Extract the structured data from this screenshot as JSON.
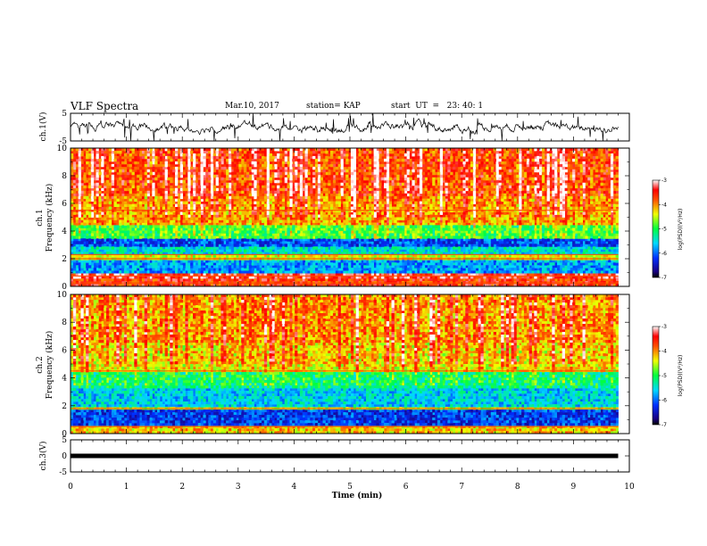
{
  "header": {
    "title": "VLF Spectra",
    "date": "Mar.10, 2017",
    "station": "station= KAP",
    "start": "start  UT  =   23: 40: 1"
  },
  "chart_data": [
    {
      "type": "line",
      "panel": "ch1-waveform",
      "ylabel": "ch.1(V)",
      "ylim": [
        -5,
        5
      ],
      "yticks": [
        "5",
        "-5"
      ],
      "xlim": [
        0,
        10
      ],
      "x_end": 9.8,
      "baseline": 0,
      "color": "#000000"
    },
    {
      "type": "heatmap",
      "panel": "ch1-spectrogram",
      "ylabel": "ch.1\nFrequency (kHz)",
      "ylabel_line1": "ch.1",
      "ylabel_line2": "Frequency (kHz)",
      "ylim": [
        0,
        10
      ],
      "yticks": [
        "0",
        "2",
        "4",
        "6",
        "8",
        "10"
      ],
      "xlim": [
        0,
        10
      ],
      "x_end": 9.8,
      "colorbar": {
        "label": "log(PSD)(V²/Hz)",
        "range": [
          -7,
          -3
        ],
        "ticks": [
          "-3",
          "-4",
          "-5",
          "-6",
          "-7"
        ]
      },
      "bands": [
        {
          "fmin": 0.0,
          "fmax": 0.6,
          "level": -3.6
        },
        {
          "fmin": 0.6,
          "fmax": 1.0,
          "level": -3.4
        },
        {
          "fmin": 1.0,
          "fmax": 1.9,
          "level": -5.8
        },
        {
          "fmin": 1.9,
          "fmax": 2.3,
          "level": -4.4
        },
        {
          "fmin": 2.3,
          "fmax": 2.8,
          "level": -5.5
        },
        {
          "fmin": 2.8,
          "fmax": 3.5,
          "level": -6.1
        },
        {
          "fmin": 3.5,
          "fmax": 4.5,
          "level": -5.0
        },
        {
          "fmin": 4.5,
          "fmax": 6.5,
          "level": -4.2
        },
        {
          "fmin": 6.5,
          "fmax": 10.0,
          "level": -3.9
        }
      ],
      "lines_khz": [
        0.25,
        0.75,
        2.0,
        2.3,
        5.5
      ]
    },
    {
      "type": "heatmap",
      "panel": "ch2-spectrogram",
      "ylabel": "ch.2\nFrequency (kHz)",
      "ylabel_line1": "ch.2",
      "ylabel_line2": "Frequency (kHz)",
      "ylim": [
        0,
        10
      ],
      "yticks": [
        "0",
        "2",
        "4",
        "6",
        "8",
        "10"
      ],
      "xlim": [
        0,
        10
      ],
      "x_end": 9.8,
      "colorbar": {
        "label": "log(PSD)(V²/Hz)",
        "range": [
          -7,
          -3
        ],
        "ticks": [
          "-3",
          "-4",
          "-5",
          "-6",
          "-7"
        ]
      },
      "bands": [
        {
          "fmin": 0.0,
          "fmax": 0.5,
          "level": -4.2
        },
        {
          "fmin": 0.5,
          "fmax": 1.7,
          "level": -6.2
        },
        {
          "fmin": 1.7,
          "fmax": 2.0,
          "level": -4.5
        },
        {
          "fmin": 2.0,
          "fmax": 3.2,
          "level": -5.6
        },
        {
          "fmin": 3.2,
          "fmax": 4.5,
          "level": -5.2
        },
        {
          "fmin": 4.5,
          "fmax": 6.5,
          "level": -4.4
        },
        {
          "fmin": 6.5,
          "fmax": 10.0,
          "level": -4.2
        }
      ],
      "lines_khz": [
        0.5,
        1.8,
        4.5
      ]
    },
    {
      "type": "line",
      "panel": "ch3-waveform",
      "ylabel": "ch.3(V)",
      "ylim": [
        -5,
        5
      ],
      "yticks": [
        "5",
        "0",
        "-5"
      ],
      "xlim": [
        0,
        10
      ],
      "x_end": 9.8,
      "baseline": 0,
      "color": "#000000",
      "xlabel": "Time (min)",
      "xticks": [
        "0",
        "1",
        "2",
        "3",
        "4",
        "5",
        "6",
        "7",
        "8",
        "9",
        "10"
      ]
    }
  ]
}
